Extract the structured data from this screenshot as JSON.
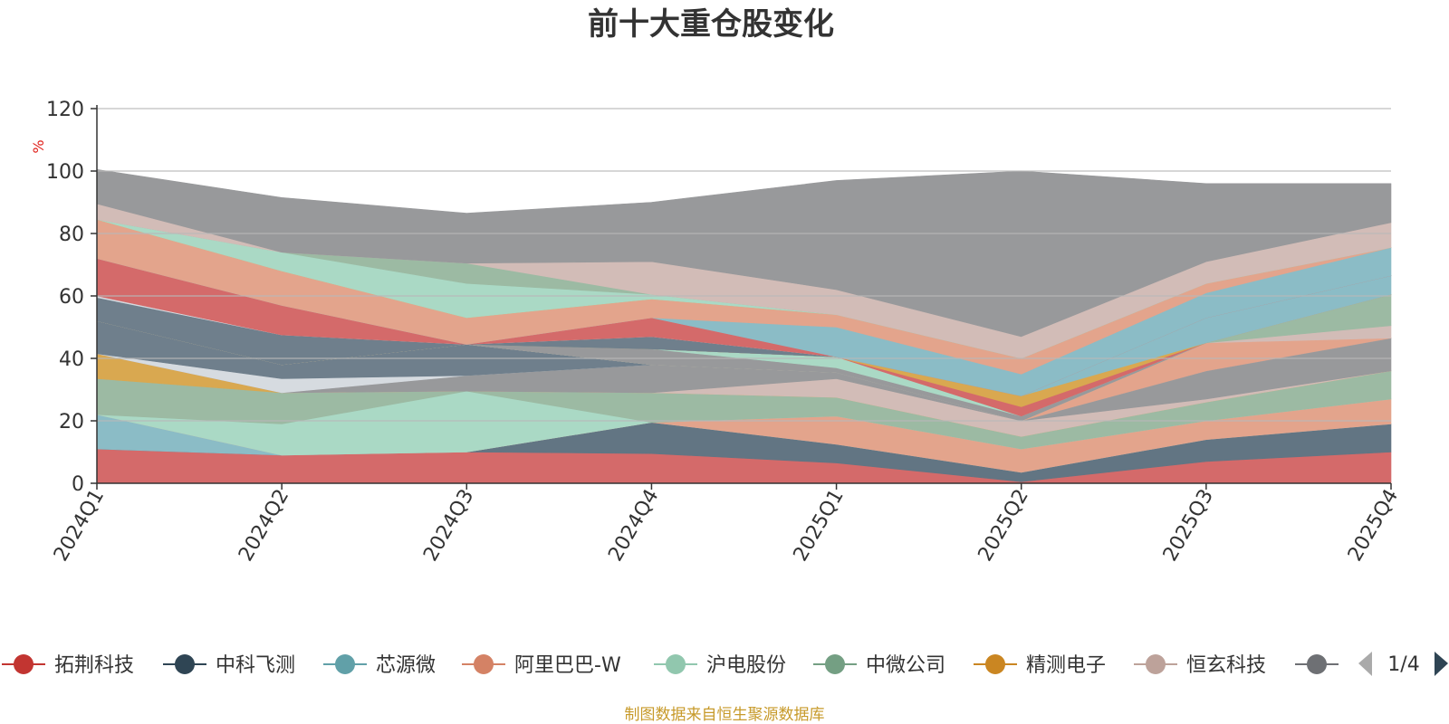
{
  "chart_data": {
    "type": "area",
    "stacked": true,
    "title": "前十大重仓股变化",
    "ylabel": "%",
    "ylim": [
      0,
      120
    ],
    "yticks": [
      0,
      20,
      40,
      60,
      80,
      100,
      120
    ],
    "grid": true,
    "legend_position": "bottom",
    "categories": [
      "2024Q1",
      "2024Q2",
      "2024Q3",
      "2024Q4",
      "2025Q1",
      "2025Q2",
      "2025Q3",
      "2025Q4"
    ],
    "series": [
      {
        "name": "拓荆科技",
        "color": "#d46a6a",
        "values": [
          11,
          9,
          10,
          9.5,
          6.5,
          0.5,
          7,
          10
        ]
      },
      {
        "name": "中科飞测",
        "color": "#627583",
        "values": [
          0,
          0,
          0,
          10,
          6,
          3,
          7,
          9
        ]
      },
      {
        "name": "芯源微",
        "color": "#8bbcc6",
        "values": [
          11,
          0,
          0,
          0,
          0,
          0,
          0,
          0
        ]
      },
      {
        "name": "阿里巴巴-W",
        "color": "#e3a48c",
        "values": [
          0,
          0,
          0,
          0,
          9,
          7.5,
          6,
          8
        ]
      },
      {
        "name": "沪电股份",
        "color": "#aad9c5",
        "values": [
          0,
          10,
          19.5,
          0,
          0,
          0,
          0,
          0
        ]
      },
      {
        "name": "中微公司",
        "color": "#9cbaa3",
        "values": [
          11.5,
          10,
          0,
          9.5,
          6,
          4,
          6,
          9
        ]
      },
      {
        "name": "精测电子",
        "color": "#d9a850",
        "values": [
          8,
          0,
          0,
          0,
          0,
          0,
          0,
          0
        ]
      },
      {
        "name": "恒玄科技",
        "color": "#d2bcb7",
        "values": [
          0,
          0,
          0,
          0,
          6,
          5,
          1,
          0
        ]
      },
      {
        "name": "",
        "color": "#98999b",
        "values": [
          0,
          0,
          5,
          9,
          2,
          0,
          9,
          10.5
        ]
      },
      {
        "name": "",
        "color": "#d6dbe0",
        "values": [
          0,
          4.5,
          0,
          0,
          0,
          0,
          0,
          0
        ]
      },
      {
        "name": "",
        "color": "#6f7f8c",
        "values": [
          10.5,
          4.5,
          10,
          0,
          0,
          0,
          0,
          0
        ]
      },
      {
        "name": "",
        "color": "#e3a48c",
        "values": [
          0,
          0,
          0,
          0,
          0,
          0,
          9,
          0
        ]
      },
      {
        "name": "",
        "color": "#d2bcb7",
        "values": [
          0,
          0,
          0,
          0,
          0,
          0,
          0,
          4
        ]
      },
      {
        "name": "",
        "color": "#9cbaa3",
        "values": [
          0,
          0,
          0,
          0,
          0,
          0,
          0,
          10
        ]
      },
      {
        "name": "",
        "color": "#98999b",
        "values": [
          0,
          0,
          0,
          5,
          1.5,
          1.5,
          0,
          0
        ]
      },
      {
        "name": "",
        "color": "#aad9c5",
        "values": [
          0,
          0,
          0,
          0,
          3.5,
          0,
          0,
          0
        ]
      },
      {
        "name": "",
        "color": "#d46a6a",
        "values": [
          0,
          0,
          0,
          0,
          0,
          3,
          0,
          0
        ]
      },
      {
        "name": "",
        "color": "#d9a850",
        "values": [
          0,
          0,
          0,
          0,
          0,
          3.5,
          0,
          0
        ]
      },
      {
        "name": "",
        "color": "#8bbcc6",
        "values": [
          0,
          0,
          0,
          0,
          0,
          0,
          8,
          6
        ]
      },
      {
        "name": "",
        "color": "#627583",
        "values": [
          0,
          0,
          0,
          0,
          0,
          0,
          0,
          0
        ]
      },
      {
        "name": "",
        "color": "#e3a48c",
        "values": [
          0,
          0,
          0,
          0,
          0,
          0,
          0,
          0
        ]
      },
      {
        "name": "",
        "color": "#9cbaa3",
        "values": [
          0,
          0,
          0,
          0,
          0,
          0,
          0,
          0
        ]
      },
      {
        "name": "",
        "color": "#6f7f8c",
        "values": [
          7.5,
          9.5,
          0,
          4,
          0,
          0,
          0,
          0
        ]
      },
      {
        "name": "",
        "color": "#d6dbe0",
        "values": [
          0.5,
          0,
          0,
          0,
          0,
          0,
          0,
          0
        ]
      },
      {
        "name": "",
        "color": "#d46a6a",
        "values": [
          12,
          9.5,
          0,
          6,
          0,
          0,
          0,
          0
        ]
      },
      {
        "name": "",
        "color": "#8bbcc6",
        "values": [
          0,
          0,
          0,
          0,
          9.5,
          7,
          8,
          9
        ]
      },
      {
        "name": "",
        "color": "#e3a48c",
        "values": [
          12.5,
          11,
          8.5,
          6,
          4,
          5,
          3,
          0
        ]
      },
      {
        "name": "",
        "color": "#d9a850",
        "values": [
          0,
          0,
          0,
          0,
          0,
          0,
          0,
          0
        ]
      },
      {
        "name": "",
        "color": "#aad9c5",
        "values": [
          0,
          6,
          11,
          1.5,
          0,
          0,
          0,
          0
        ]
      },
      {
        "name": "",
        "color": "#9cbaa3",
        "values": [
          0,
          0,
          6.5,
          0,
          0,
          0,
          0,
          0
        ]
      },
      {
        "name": "",
        "color": "#d2bcb7",
        "values": [
          5,
          0,
          0,
          10.5,
          8,
          7,
          7,
          8
        ]
      },
      {
        "name": "",
        "color": "#98999b",
        "values": [
          11,
          17.5,
          16,
          19,
          35,
          53,
          25,
          12.5
        ]
      }
    ],
    "legend": [
      {
        "label": "拓荆科技",
        "color": "#c23531"
      },
      {
        "label": "中科飞测",
        "color": "#2f4554"
      },
      {
        "label": "芯源微",
        "color": "#61a0a8"
      },
      {
        "label": "阿里巴巴-W",
        "color": "#d48265"
      },
      {
        "label": "沪电股份",
        "color": "#91c7ae"
      },
      {
        "label": "中微公司",
        "color": "#749f83"
      },
      {
        "label": "精测电子",
        "color": "#ca8622"
      },
      {
        "label": "恒玄科技",
        "color": "#bda29a"
      },
      {
        "label": "",
        "color": "#6e7074"
      }
    ],
    "legend_page": "1/4"
  },
  "footer": "制图数据来自恒生聚源数据库"
}
